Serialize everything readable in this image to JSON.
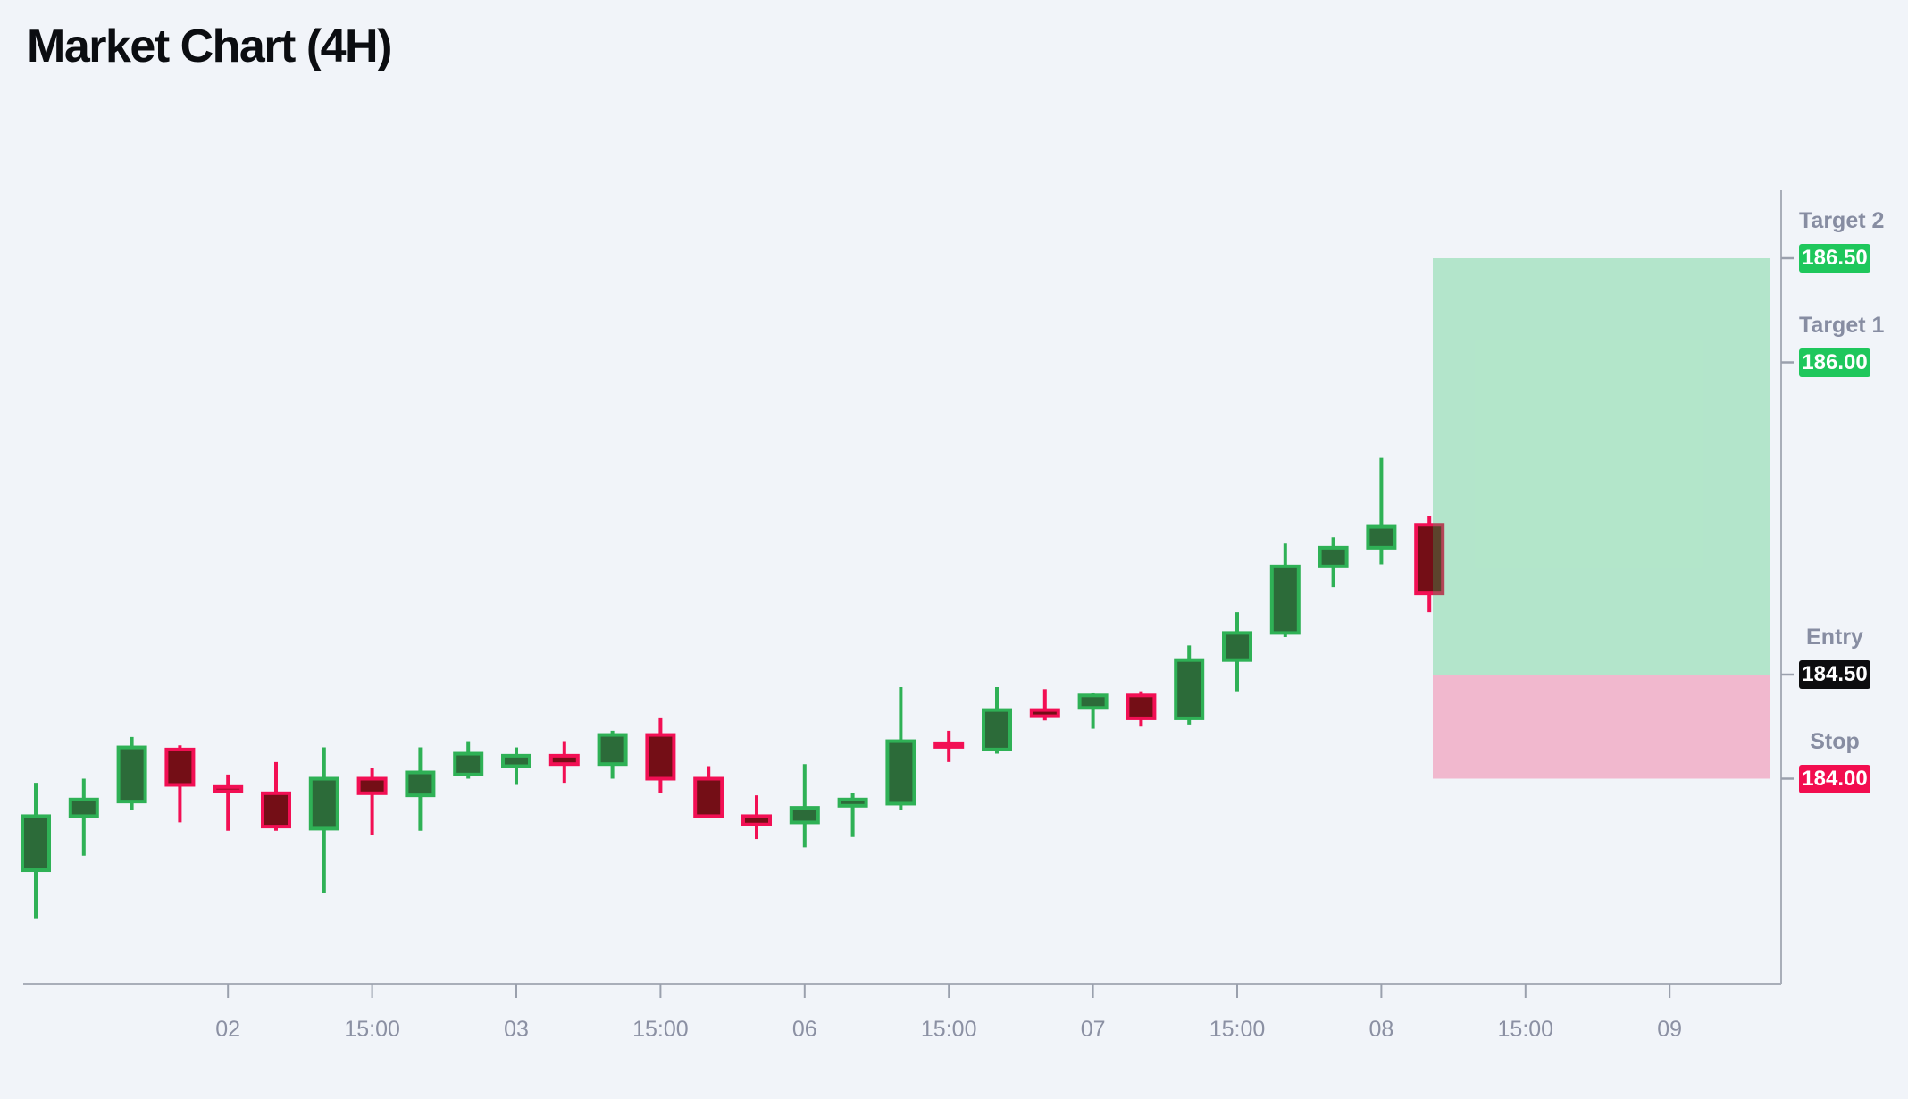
{
  "title": "Market Chart (4H)",
  "colors": {
    "background": "#f1f4f9",
    "bull_border": "#2fb156",
    "bull_fill": "#2c6b39",
    "bear_border": "#f20f54",
    "bear_fill": "#740e16",
    "profit_zone_fill": "rgba(36,197,95,0.30)",
    "loss_zone_fill": "rgba(242,13,84,0.26)",
    "target_badge": "#1fc75c",
    "entry_badge": "#0d0d0f",
    "stop_badge": "#f20d4f",
    "axis_line": "#a9aeb9",
    "tick_mark": "#9aa0ad",
    "tick_label": "#8b90a3",
    "level_label": "#878da2",
    "title_text": "#0b0d11"
  },
  "chart_data": {
    "type": "candlestick",
    "title": "Market Chart (4H)",
    "timeframe": "4H",
    "grid": "off",
    "legend": "none",
    "visible_price_range": [
      183.0,
      186.85
    ],
    "x_ticks": [
      {
        "candle_index": 4,
        "label": "02"
      },
      {
        "candle_index": 7,
        "label": "15:00"
      },
      {
        "candle_index": 10,
        "label": "03"
      },
      {
        "candle_index": 13,
        "label": "15:00"
      },
      {
        "candle_index": 16,
        "label": "06"
      },
      {
        "candle_index": 19,
        "label": "15:00"
      },
      {
        "candle_index": 22,
        "label": "07"
      },
      {
        "candle_index": 25,
        "label": "15:00"
      },
      {
        "candle_index": 28,
        "label": "08"
      },
      {
        "candle_index": 31,
        "label": "15:00"
      },
      {
        "candle_index": 34,
        "label": "09"
      }
    ],
    "candles": [
      {
        "o": 183.56,
        "h": 183.98,
        "l": 183.33,
        "c": 183.82
      },
      {
        "o": 183.82,
        "h": 184.0,
        "l": 183.63,
        "c": 183.9
      },
      {
        "o": 183.89,
        "h": 184.2,
        "l": 183.85,
        "c": 184.15
      },
      {
        "o": 184.14,
        "h": 184.16,
        "l": 183.79,
        "c": 183.97
      },
      {
        "o": 183.96,
        "h": 184.02,
        "l": 183.75,
        "c": 183.94
      },
      {
        "o": 183.93,
        "h": 184.08,
        "l": 183.75,
        "c": 183.77
      },
      {
        "o": 183.76,
        "h": 184.15,
        "l": 183.45,
        "c": 184.0
      },
      {
        "o": 184.0,
        "h": 184.05,
        "l": 183.73,
        "c": 183.93
      },
      {
        "o": 183.92,
        "h": 184.15,
        "l": 183.75,
        "c": 184.03
      },
      {
        "o": 184.02,
        "h": 184.18,
        "l": 184.0,
        "c": 184.12
      },
      {
        "o": 184.06,
        "h": 184.15,
        "l": 183.97,
        "c": 184.11
      },
      {
        "o": 184.11,
        "h": 184.18,
        "l": 183.98,
        "c": 184.07
      },
      {
        "o": 184.07,
        "h": 184.23,
        "l": 184.0,
        "c": 184.21
      },
      {
        "o": 184.21,
        "h": 184.29,
        "l": 183.93,
        "c": 184.0
      },
      {
        "o": 184.0,
        "h": 184.06,
        "l": 183.81,
        "c": 183.82
      },
      {
        "o": 183.82,
        "h": 183.92,
        "l": 183.71,
        "c": 183.78
      },
      {
        "o": 183.79,
        "h": 184.07,
        "l": 183.67,
        "c": 183.86
      },
      {
        "o": 183.87,
        "h": 183.93,
        "l": 183.72,
        "c": 183.9
      },
      {
        "o": 183.88,
        "h": 184.44,
        "l": 183.85,
        "c": 184.18
      },
      {
        "o": 184.17,
        "h": 184.23,
        "l": 184.08,
        "c": 184.16
      },
      {
        "o": 184.14,
        "h": 184.44,
        "l": 184.12,
        "c": 184.33
      },
      {
        "o": 184.33,
        "h": 184.43,
        "l": 184.28,
        "c": 184.3
      },
      {
        "o": 184.34,
        "h": 184.41,
        "l": 184.24,
        "c": 184.4
      },
      {
        "o": 184.4,
        "h": 184.42,
        "l": 184.25,
        "c": 184.29
      },
      {
        "o": 184.29,
        "h": 184.64,
        "l": 184.26,
        "c": 184.57
      },
      {
        "o": 184.57,
        "h": 184.8,
        "l": 184.42,
        "c": 184.7
      },
      {
        "o": 184.7,
        "h": 185.13,
        "l": 184.68,
        "c": 185.02
      },
      {
        "o": 185.02,
        "h": 185.16,
        "l": 184.92,
        "c": 185.11
      },
      {
        "o": 185.11,
        "h": 185.54,
        "l": 185.03,
        "c": 185.21
      },
      {
        "o": 185.22,
        "h": 185.26,
        "l": 184.8,
        "c": 184.89
      }
    ],
    "levels": [
      {
        "label": "Target 2",
        "value": "186.50",
        "price": 186.5,
        "type": "target"
      },
      {
        "label": "Target 1",
        "value": "186.00",
        "price": 186.0,
        "type": "target"
      },
      {
        "label": "Entry",
        "value": "184.50",
        "price": 184.5,
        "type": "entry"
      },
      {
        "label": "Stop",
        "value": "184.00",
        "price": 184.0,
        "type": "stop"
      }
    ],
    "zones": [
      {
        "name": "profit",
        "from_price": 184.5,
        "to_price": 186.5
      },
      {
        "name": "loss",
        "from_price": 184.0,
        "to_price": 184.5
      }
    ]
  }
}
